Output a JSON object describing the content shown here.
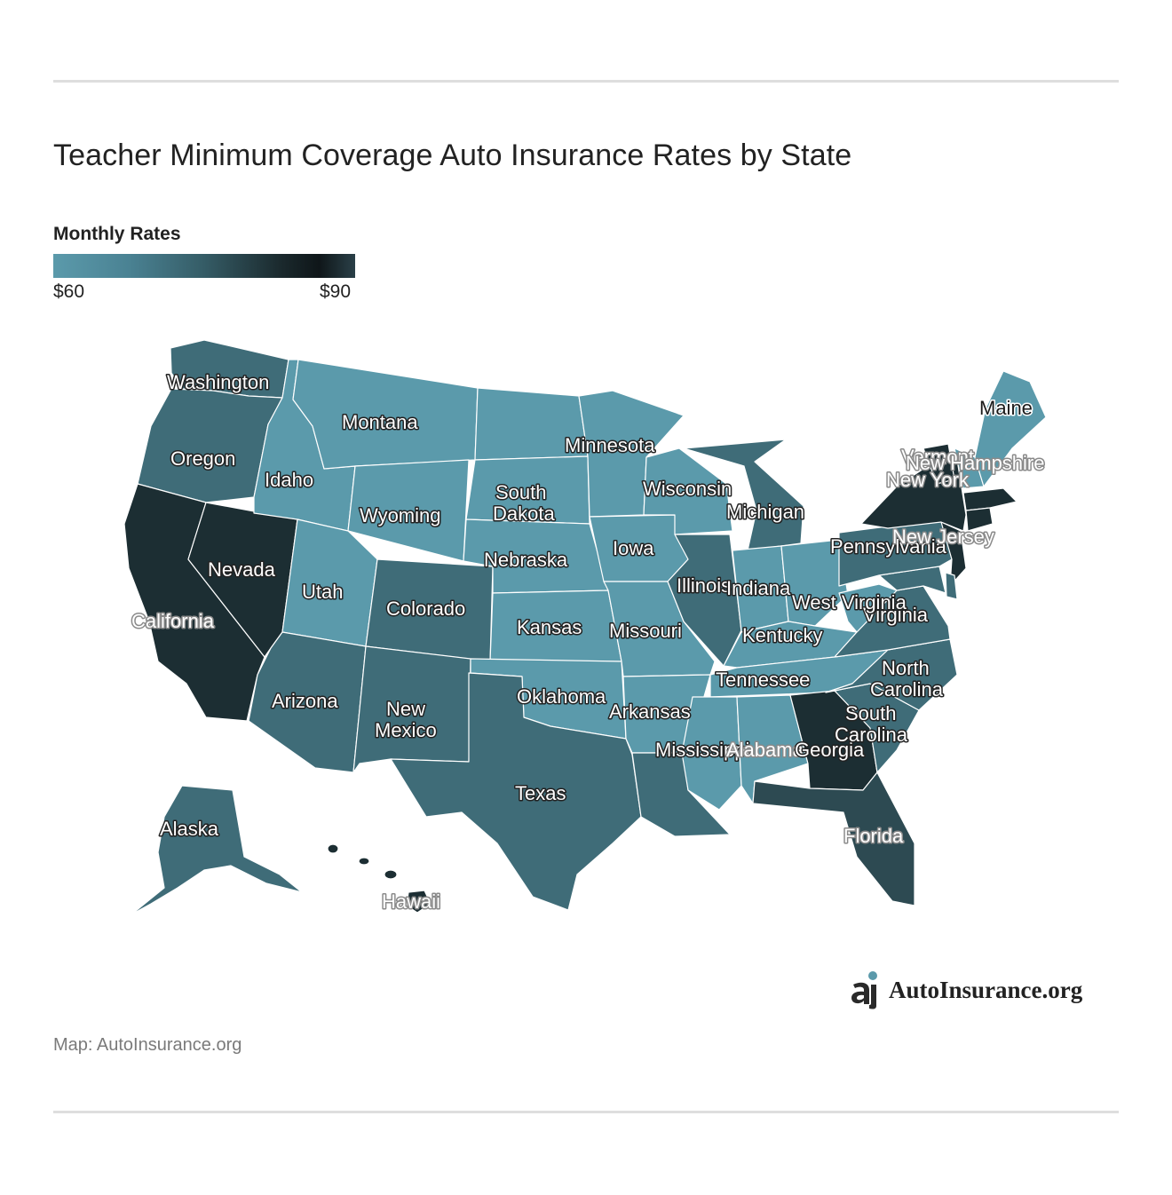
{
  "header": {
    "title": "Teacher Minimum Coverage Auto Insurance Rates by State"
  },
  "legend": {
    "title": "Monthly Rates",
    "min_label": "$60",
    "max_label": "$90",
    "min_color": "#5b9aab",
    "max_color": "#0f1619"
  },
  "map_labels": {
    "washington": "Washington",
    "oregon": "Oregon",
    "california": "California",
    "nevada": "Nevada",
    "idaho": "Idaho",
    "montana": "Montana",
    "wyoming": "Wyoming",
    "utah": "Utah",
    "colorado": "Colorado",
    "arizona": "Arizona",
    "new_mexico_1": "New",
    "new_mexico_2": "Mexico",
    "north_dakota": "",
    "south_dakota_1": "South",
    "south_dakota_2": "Dakota",
    "nebraska": "Nebraska",
    "kansas": "Kansas",
    "oklahoma": "Oklahoma",
    "texas": "Texas",
    "minnesota": "Minnesota",
    "iowa": "Iowa",
    "missouri": "Missouri",
    "arkansas": "Arkansas",
    "wisconsin": "Wisconsin",
    "illinois": "Illinois",
    "michigan": "Michigan",
    "indiana": "Indiana",
    "kentucky": "Kentucky",
    "tennessee": "Tennessee",
    "mississippi": "Mississippi",
    "alabama": "Alabama",
    "georgia": "Georgia",
    "florida": "Florida",
    "south_carolina_1": "South",
    "south_carolina_2": "Carolina",
    "north_carolina_1": "North",
    "north_carolina_2": "Carolina",
    "virginia": "Virginia",
    "west_virginia": "West Virginia",
    "pennsylvania": "Pennsylvania",
    "new_jersey": "New Jersey",
    "new_york": "New York",
    "vermont": "Vermont",
    "new_hampshire": "New Hampshire",
    "maine": "Maine",
    "alaska": "Alaska",
    "hawaii": "Hawaii"
  },
  "brand": {
    "name": "AutoInsurance.org"
  },
  "footer": {
    "source": "Map: AutoInsurance.org"
  }
}
